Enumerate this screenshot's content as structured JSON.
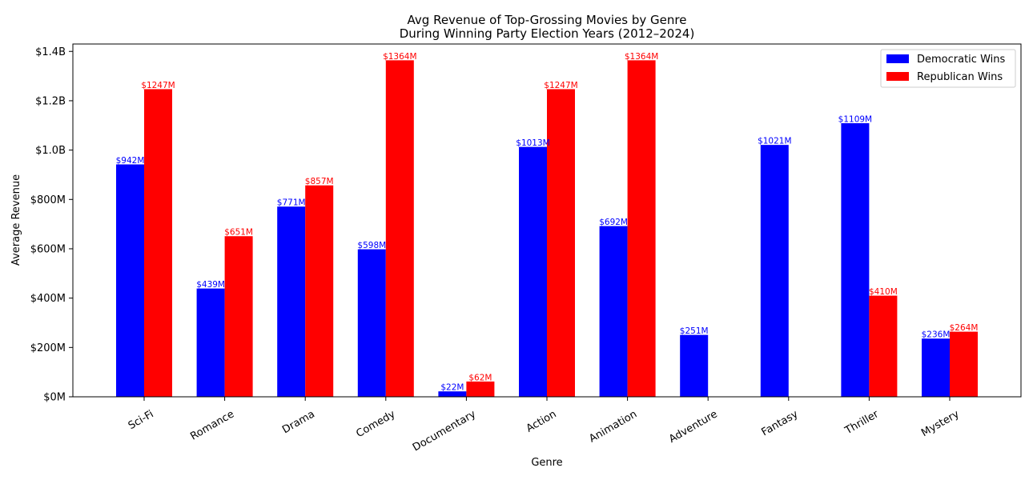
{
  "chart_data": {
    "type": "bar",
    "title": "Avg Revenue of Top-Grossing Movies by Genre",
    "subtitle": "During Winning Party Election Years (2012–2024)",
    "xlabel": "Genre",
    "ylabel": "Average Revenue",
    "ylim": [
      0,
      1430
    ],
    "unit": "millions USD",
    "yticks": [
      {
        "value": 0,
        "label": "$0M"
      },
      {
        "value": 200,
        "label": "$200M"
      },
      {
        "value": 400,
        "label": "$400M"
      },
      {
        "value": 600,
        "label": "$600M"
      },
      {
        "value": 800,
        "label": "$800M"
      },
      {
        "value": 1000,
        "label": "$1.0B"
      },
      {
        "value": 1200,
        "label": "$1.2B"
      },
      {
        "value": 1400,
        "label": "$1.4B"
      }
    ],
    "categories": [
      "Sci-Fi",
      "Romance",
      "Drama",
      "Comedy",
      "Documentary",
      "Action",
      "Animation",
      "Adventure",
      "Fantasy",
      "Thriller",
      "Mystery"
    ],
    "series": [
      {
        "name": "Democratic Wins",
        "color": "#0000ff",
        "values": [
          942,
          439,
          771,
          598,
          22,
          1013,
          692,
          251,
          1021,
          1109,
          236
        ],
        "labels": [
          "$942M",
          "$439M",
          "$771M",
          "$598M",
          "$22M",
          "$1013M",
          "$692M",
          "$251M",
          "$1021M",
          "$1109M",
          "$236M"
        ]
      },
      {
        "name": "Republican Wins",
        "color": "#ff0000",
        "values": [
          1247,
          651,
          857,
          1364,
          62,
          1247,
          1364,
          null,
          null,
          410,
          264
        ],
        "labels": [
          "$1247M",
          "$651M",
          "$857M",
          "$1364M",
          "$62M",
          "$1247M",
          "$1364M",
          null,
          null,
          "$410M",
          "$264M"
        ]
      }
    ],
    "legend": "top-right",
    "grid": false
  }
}
